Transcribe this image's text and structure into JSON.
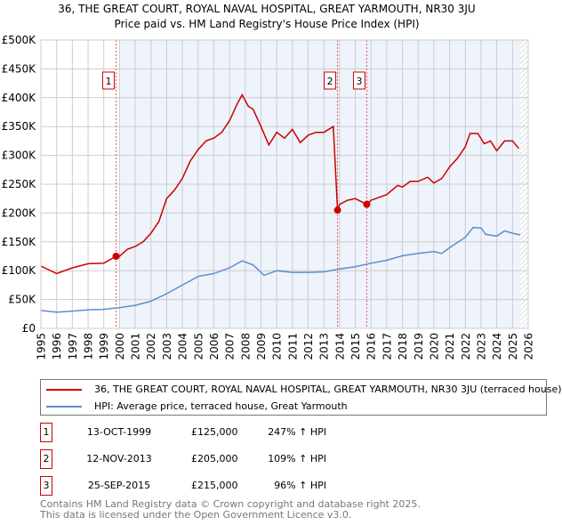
{
  "title": "36, THE GREAT COURT, ROYAL NAVAL HOSPITAL, GREAT YARMOUTH, NR30 3JU",
  "subtitle": "Price paid vs. HM Land Registry's House Price Index (HPI)",
  "colors": {
    "property": "#cc0000",
    "hpi": "#5b8fd0",
    "shade": "#eef3fc"
  },
  "chart_data": {
    "type": "line",
    "xlim": [
      1995,
      2026
    ],
    "ylim": [
      0,
      500000
    ],
    "x_ticks": [
      "1995",
      "1996",
      "1997",
      "1998",
      "1999",
      "2000",
      "2001",
      "2002",
      "2003",
      "2004",
      "2005",
      "2006",
      "2007",
      "2008",
      "2009",
      "2010",
      "2011",
      "2012",
      "2013",
      "2014",
      "2015",
      "2016",
      "2017",
      "2018",
      "2019",
      "2020",
      "2021",
      "2022",
      "2023",
      "2024",
      "2025",
      "2026"
    ],
    "y_ticks": [
      {
        "v": 0,
        "label": "£0"
      },
      {
        "v": 50000,
        "label": "£50K"
      },
      {
        "v": 100000,
        "label": "£100K"
      },
      {
        "v": 150000,
        "label": "£150K"
      },
      {
        "v": 200000,
        "label": "£200K"
      },
      {
        "v": 250000,
        "label": "£250K"
      },
      {
        "v": 300000,
        "label": "£300K"
      },
      {
        "v": 350000,
        "label": "£350K"
      },
      {
        "v": 400000,
        "label": "£400K"
      },
      {
        "v": 450000,
        "label": "£450K"
      },
      {
        "v": 500000,
        "label": "£500K"
      }
    ],
    "series": [
      {
        "name": "36, THE GREAT COURT, ROYAL NAVAL HOSPITAL, GREAT YARMOUTH, NR30 3JU (terraced house)",
        "color": "#cc0000",
        "x": [
          1995,
          1996,
          1997,
          1998,
          1999,
          1999.78,
          2000,
          2000.5,
          2001,
          2001.5,
          2002,
          2002.5,
          2003,
          2003.5,
          2004,
          2004.5,
          2005,
          2005.5,
          2006,
          2006.5,
          2007,
          2007.5,
          2007.8,
          2008.2,
          2008.5,
          2009,
          2009.5,
          2010,
          2010.5,
          2011,
          2011.5,
          2012,
          2012.5,
          2013,
          2013.6,
          2013.87,
          2014,
          2014.5,
          2015,
          2015.73,
          2016,
          2017,
          2017.7,
          2018,
          2018.5,
          2019,
          2019.6,
          2020,
          2020.5,
          2021,
          2021.5,
          2022,
          2022.3,
          2022.8,
          2023.2,
          2023.6,
          2024,
          2024.5,
          2025,
          2025.4
        ],
        "y": [
          108000,
          95000,
          105000,
          112000,
          113000,
          125000,
          125000,
          137000,
          142000,
          150000,
          165000,
          185000,
          225000,
          240000,
          260000,
          290000,
          310000,
          325000,
          330000,
          340000,
          360000,
          390000,
          405000,
          385000,
          380000,
          350000,
          318000,
          340000,
          330000,
          345000,
          322000,
          335000,
          340000,
          340000,
          350000,
          205000,
          215000,
          222000,
          225000,
          215000,
          222000,
          232000,
          248000,
          245000,
          255000,
          255000,
          262000,
          252000,
          260000,
          280000,
          295000,
          315000,
          338000,
          338000,
          320000,
          325000,
          308000,
          325000,
          325000,
          312000
        ]
      },
      {
        "name": "HPI: Average price, terraced house, Great Yarmouth",
        "color": "#5b8fd0",
        "x": [
          1995,
          1996,
          1997,
          1998,
          1999,
          2000,
          2001,
          2002,
          2003,
          2004,
          2005,
          2006,
          2007,
          2007.8,
          2008.5,
          2009.2,
          2010,
          2011,
          2012,
          2013,
          2014,
          2015,
          2016,
          2017,
          2018,
          2019,
          2020,
          2020.5,
          2021,
          2022,
          2022.5,
          2023,
          2023.3,
          2024,
          2024.5,
          2025,
          2025.5
        ],
        "y": [
          31000,
          28000,
          30000,
          32000,
          33000,
          36000,
          40000,
          47000,
          60000,
          75000,
          90000,
          95000,
          105000,
          117000,
          110000,
          92000,
          100000,
          97000,
          97000,
          98000,
          103000,
          107000,
          113000,
          118000,
          126000,
          130000,
          133000,
          130000,
          140000,
          158000,
          175000,
          174000,
          163000,
          160000,
          169000,
          165000,
          162000
        ]
      }
    ],
    "sales": [
      {
        "label": "1",
        "x": 1999.78,
        "y": 125000
      },
      {
        "label": "2",
        "x": 2013.87,
        "y": 205000
      },
      {
        "label": "3",
        "x": 2015.73,
        "y": 215000
      }
    ]
  },
  "legend": {
    "property": "36, THE GREAT COURT, ROYAL NAVAL HOSPITAL, GREAT YARMOUTH, NR30 3JU (terraced house)",
    "hpi": "HPI: Average price, terraced house, Great Yarmouth"
  },
  "transactions": [
    {
      "num": "1",
      "date": "13-OCT-1999",
      "price": "£125,000",
      "hpi": "247% ↑ HPI"
    },
    {
      "num": "2",
      "date": "12-NOV-2013",
      "price": "£205,000",
      "hpi": "109% ↑ HPI"
    },
    {
      "num": "3",
      "date": "25-SEP-2015",
      "price": "£215,000",
      "hpi": "96% ↑ HPI"
    }
  ],
  "footer": {
    "line1": "Contains HM Land Registry data © Crown copyright and database right 2025.",
    "line2": "This data is licensed under the Open Government Licence v3.0."
  }
}
